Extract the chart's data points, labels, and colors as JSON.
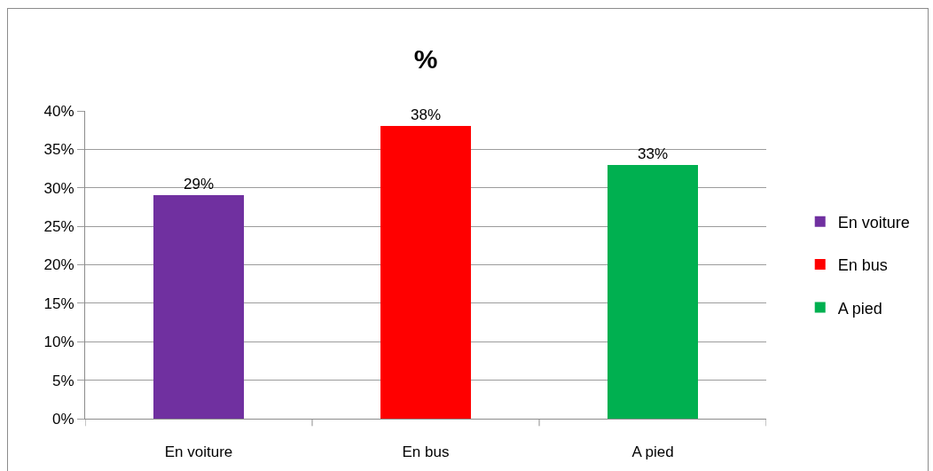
{
  "chart_data": {
    "type": "bar",
    "title": "%",
    "categories": [
      "En voiture",
      "En bus",
      "A pied"
    ],
    "series": [
      {
        "name": "En voiture",
        "color": "#7030a0",
        "values": [
          29,
          null,
          null
        ],
        "value_labels": [
          "29%",
          null,
          null
        ]
      },
      {
        "name": "En bus",
        "color": "#ff0000",
        "values": [
          null,
          38,
          null
        ],
        "value_labels": [
          null,
          "38%",
          null
        ]
      },
      {
        "name": "A pied",
        "color": "#00b050",
        "values": [
          null,
          null,
          33
        ],
        "value_labels": [
          null,
          null,
          "33%"
        ]
      }
    ],
    "ylim": [
      0,
      40
    ],
    "yticks": [
      {
        "value": 0,
        "label": "0%"
      },
      {
        "value": 5,
        "label": "5%"
      },
      {
        "value": 10,
        "label": "10%"
      },
      {
        "value": 15,
        "label": "15%"
      },
      {
        "value": 20,
        "label": "20%"
      },
      {
        "value": 25,
        "label": "25%"
      },
      {
        "value": 30,
        "label": "30%"
      },
      {
        "value": 35,
        "label": "35%"
      },
      {
        "value": 40,
        "label": "40%"
      }
    ],
    "grid": "y",
    "legend": "right"
  }
}
